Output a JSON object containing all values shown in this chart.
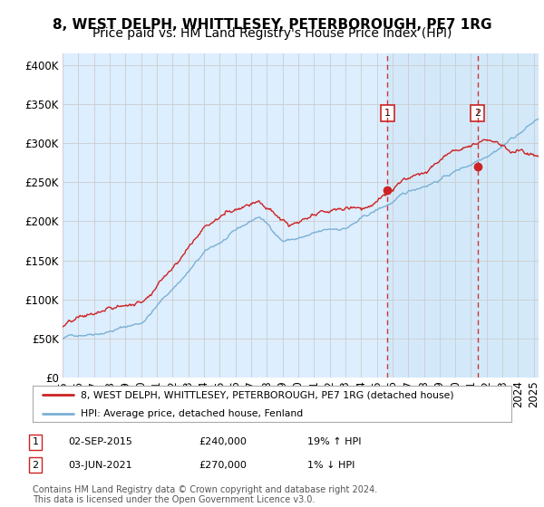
{
  "title": "8, WEST DELPH, WHITTLESEY, PETERBOROUGH, PE7 1RG",
  "subtitle": "Price paid vs. HM Land Registry's House Price Index (HPI)",
  "ylabel_ticks": [
    "£0",
    "£50K",
    "£100K",
    "£150K",
    "£200K",
    "£250K",
    "£300K",
    "£350K",
    "£400K"
  ],
  "ytick_values": [
    0,
    50000,
    100000,
    150000,
    200000,
    250000,
    300000,
    350000,
    400000
  ],
  "ylim": [
    0,
    415000
  ],
  "xlim_start": 1995.0,
  "xlim_end": 2025.3,
  "hpi_color": "#7ab0d4",
  "price_color": "#cc2222",
  "marker1_x": 2015.67,
  "marker1_y": 240000,
  "marker2_x": 2021.42,
  "marker2_y": 270000,
  "vline_color": "#cc2222",
  "highlight_color": "#d0e8f8",
  "legend_label_red": "8, WEST DELPH, WHITTLESEY, PETERBOROUGH, PE7 1RG (detached house)",
  "legend_label_blue": "HPI: Average price, detached house, Fenland",
  "annotation1_date": "02-SEP-2015",
  "annotation1_price": "£240,000",
  "annotation1_hpi": "19% ↑ HPI",
  "annotation2_date": "03-JUN-2021",
  "annotation2_price": "£270,000",
  "annotation2_hpi": "1% ↓ HPI",
  "footer": "Contains HM Land Registry data © Crown copyright and database right 2024.\nThis data is licensed under the Open Government Licence v3.0.",
  "chart_bg_color": "#ddeeff",
  "fig_bg_color": "#ffffff",
  "grid_color": "#cccccc",
  "title_fontsize": 11,
  "subtitle_fontsize": 10,
  "tick_fontsize": 8.5
}
